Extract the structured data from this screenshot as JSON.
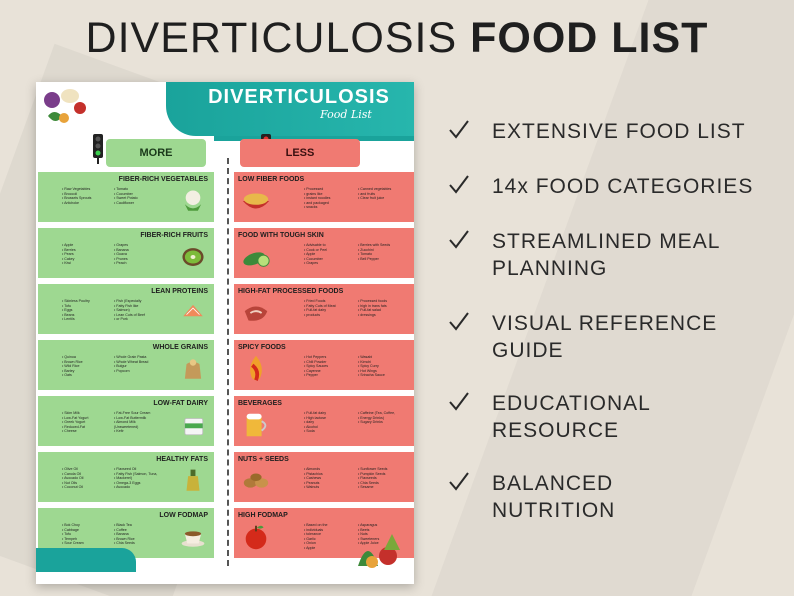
{
  "heading": {
    "light": "DIVERTICULOSIS",
    "bold": "FOOD LIST"
  },
  "poster": {
    "title": "DIVERTICULOSIS",
    "subtitle": "Food List",
    "more_label": "MORE",
    "less_label": "LESS",
    "colors": {
      "teal": "#1aa39b",
      "green": "#9ed891",
      "red": "#f07a72"
    },
    "more": [
      {
        "name": "FIBER-RICH VEGETABLES",
        "col1": [
          "Raw Vegetables",
          "Broccoli",
          "Brussels Sprouts",
          "Artichoke"
        ],
        "col2": [
          "Tomato",
          "Cucumber",
          "Sweet Potato",
          "Cauliflower"
        ],
        "icon": "cauliflower-icon"
      },
      {
        "name": "FIBER-RICH FRUITS",
        "col1": [
          "Apple",
          "Berries",
          "Pears",
          "Cakey",
          "Kiwi"
        ],
        "col2": [
          "Grapes",
          "Banana",
          "Guava",
          "Prunes",
          "Peach"
        ],
        "icon": "kiwi-icon"
      },
      {
        "name": "LEAN PROTEINS",
        "col1": [
          "Skinless Poultry",
          "Tofu",
          "Eggs",
          "Beans",
          "Lentils"
        ],
        "col2": [
          "Fish (Especially",
          "Fatty Fish like",
          "Salmon)",
          "Lean Cuts of Beef",
          "or Pork"
        ],
        "icon": "salmon-icon"
      },
      {
        "name": "WHOLE GRAINS",
        "col1": [
          "Quinoa",
          "Brown Rice",
          "Wild Rice",
          "Barley",
          "Oats"
        ],
        "col2": [
          "Whole Grain Pasta",
          "Whole Wheat Bread",
          "Bulgur",
          "Popcorn"
        ],
        "icon": "grain-sack-icon"
      },
      {
        "name": "LOW-FAT DAIRY",
        "col1": [
          "Skim Milk",
          "Low-Fat Yogurt",
          "Greek Yogurt",
          "Reduced-Fat",
          "Cheese"
        ],
        "col2": [
          "Fat-Free Sour Cream",
          "Low-Fat Buttermilk",
          "Almond Milk (Unsweetened)",
          "Kefir"
        ],
        "icon": "yogurt-icon"
      },
      {
        "name": "HEALTHY FATS",
        "col1": [
          "Olive Oil",
          "Canola Oil",
          "Avocado Oil",
          "Nut Oils",
          "Coconut Oil"
        ],
        "col2": [
          "Flaxseed Oil",
          "Fatty Fish (Salmon, Tuna,",
          "Mackerel)",
          "Omega-3 Eggs",
          "Avocado"
        ],
        "icon": "oil-bottle-icon"
      },
      {
        "name": "LOW FODMAP",
        "col1": [
          "Bok Choy",
          "Cabbage",
          "Tofu",
          "Tempeh",
          "Sour Cream"
        ],
        "col2": [
          "Black Tea",
          "Coffee",
          "Banana",
          "Brown Rice",
          "Chia Seeds"
        ],
        "icon": "coffee-cup-icon"
      }
    ],
    "less": [
      {
        "name": "LOW FIBER FOODS",
        "col1": [
          "Processed",
          "grains like",
          "instant noodles",
          "and packaged",
          "snacks"
        ],
        "col2": [
          "Canned vegetables",
          "and fruits",
          "Clear fruit juice"
        ],
        "icon": "noodles-icon"
      },
      {
        "name": "FOOD WITH TOUGH SKIN",
        "col1": [
          "Advisable to",
          "Cook or Peel",
          "Apple",
          "Cucumber",
          "Grapes"
        ],
        "col2": [
          "Berries with Seeds",
          "Zucchini",
          "Tomato",
          "Bell Pepper"
        ],
        "icon": "cucumber-icon"
      },
      {
        "name": "HIGH-FAT PROCESSED FOODS",
        "col1": [
          "Fried Foods",
          "Fatty Cuts of Meat",
          "Full-fat dairy",
          "products"
        ],
        "col2": [
          "Processed foods",
          "high in trans fats",
          "Full-fat salad",
          "dressings"
        ],
        "icon": "meat-icon"
      },
      {
        "name": "SPICY FOODS",
        "col1": [
          "Hot Peppers",
          "Chili Powder",
          "Spicy Sauces",
          "Cayenne",
          "Pepper"
        ],
        "col2": [
          "Wasabi",
          "Kimchi",
          "Spicy Curry",
          "Hot Wings",
          "Sriracha Sauce"
        ],
        "icon": "chili-fire-icon"
      },
      {
        "name": "BEVERAGES",
        "col1": [
          "Full-fat dairy",
          "High lactose",
          "dairy",
          "Alcohol",
          "Soda"
        ],
        "col2": [
          "Caffeine (Tea, Coffee,",
          "Energy Drinks)",
          "Sugary Drinks"
        ],
        "icon": "beer-mug-icon"
      },
      {
        "name": "NUTS + SEEDS",
        "col1": [
          "Almonds",
          "Pistachios",
          "Cashews",
          "Peanuts",
          "Walnuts"
        ],
        "col2": [
          "Sunflower Seeds",
          "Pumpkin Seeds",
          "Flaxseeds",
          "Chia Seeds",
          "Sesame"
        ],
        "icon": "nuts-icon"
      },
      {
        "name": "HIGH FODMAP",
        "col1": [
          "Based on the",
          "individuals",
          "tolerance",
          "Garlic",
          "Onion",
          "Apple"
        ],
        "col2": [
          "Asparagus",
          "Beets",
          "Nuts",
          "Sweeteners",
          "Apple Juice"
        ],
        "icon": "apple-icon"
      }
    ]
  },
  "features": [
    "EXTENSIVE FOOD LIST",
    "14x FOOD CATEGORIES",
    "STREAMLINED MEAL PLANNING",
    "VISUAL REFERENCE GUIDE",
    "EDUCATIONAL RESOURCE",
    "BALANCED NUTRITION"
  ]
}
